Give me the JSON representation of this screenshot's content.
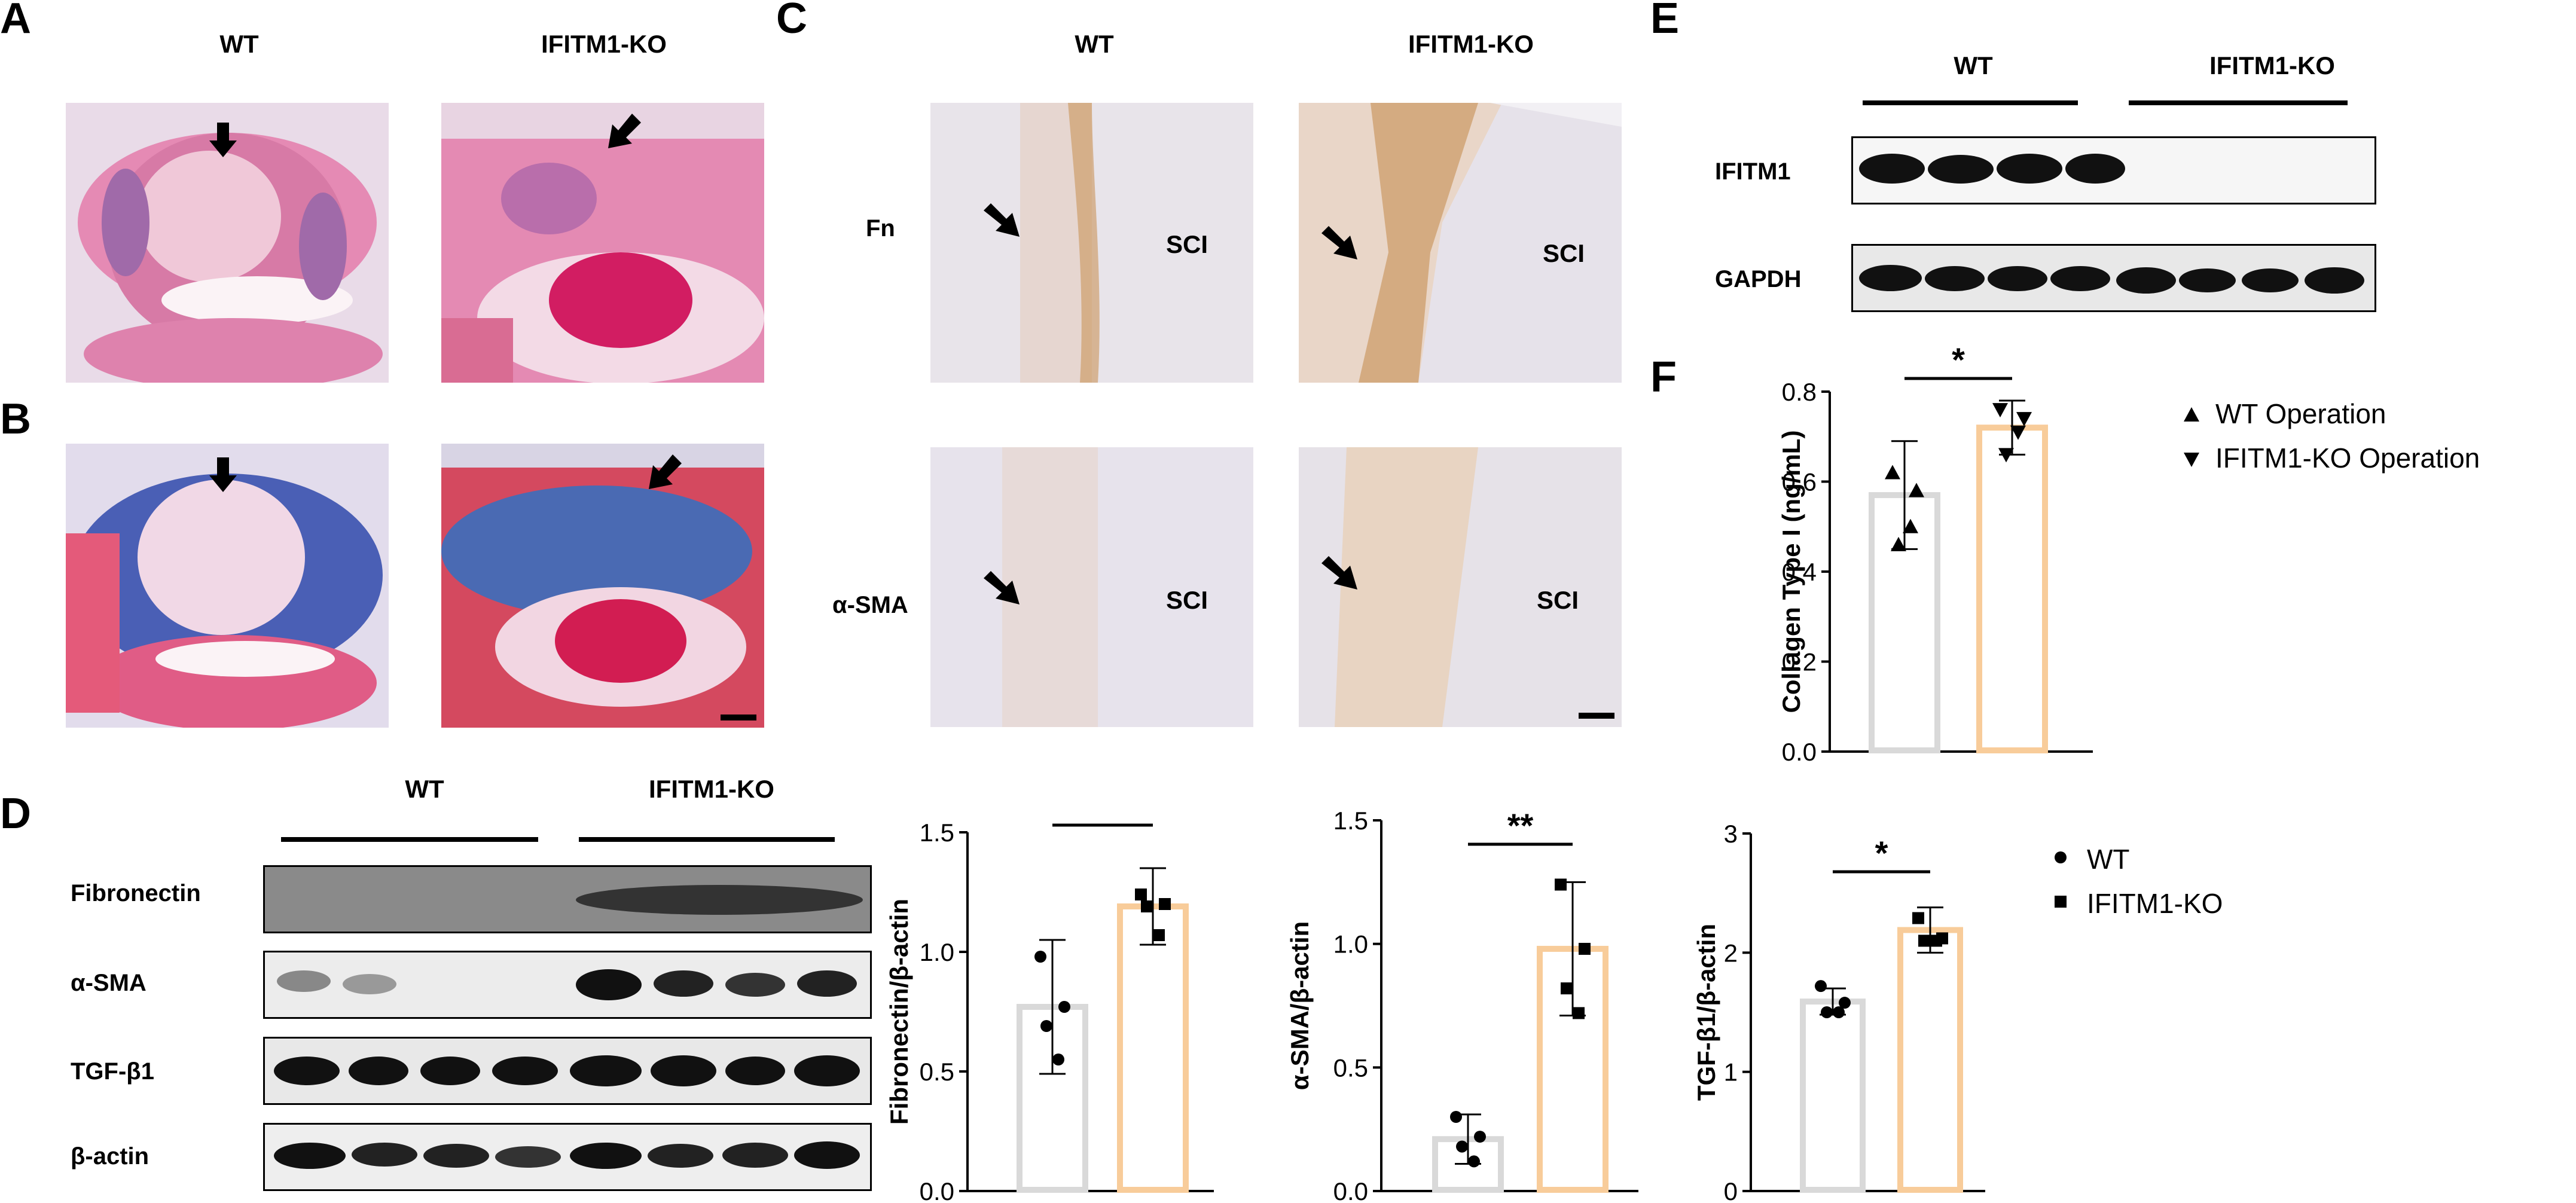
{
  "panels": {
    "A": {
      "letter": "A",
      "labels": [
        "WT",
        "IFITM1-KO"
      ]
    },
    "B": {
      "letter": "B"
    },
    "C": {
      "letter": "C",
      "labels": [
        "WT",
        "IFITM1-KO"
      ],
      "rows": [
        "Fn",
        "α-SMA"
      ],
      "region": "SCI"
    },
    "D": {
      "letter": "D",
      "labels": [
        "WT",
        "IFITM1-KO"
      ],
      "rows": [
        "Fibronectin",
        "α-SMA",
        "TGF-β1",
        "β-actin"
      ]
    },
    "E": {
      "letter": "E",
      "labels": [
        "WT",
        "IFITM1-KO"
      ],
      "rows": [
        "IFITM1",
        "GAPDH"
      ]
    },
    "F": {
      "letter": "F"
    }
  },
  "colors": {
    "wt_bar": "#d9d9d9",
    "ko_bar": "#f8cc9a",
    "he_pink": "#e58ab4",
    "masson_blue": "#4a5fb5",
    "ihc_bg": "#e8e4ea",
    "ihc_brown": "#c9945a"
  },
  "chart_data": [
    {
      "id": "F",
      "type": "bar",
      "categories": [
        "WT Operation",
        "IFITM1-KO Operation"
      ],
      "values": [
        0.57,
        0.72
      ],
      "errors": [
        0.12,
        0.06
      ],
      "points": [
        [
          0.62,
          0.58,
          0.46,
          0.5
        ],
        [
          0.76,
          0.74,
          0.66,
          0.71
        ]
      ],
      "ylabel": "Collagen Type I  (ng/mL)",
      "ylim": [
        0.0,
        0.8
      ],
      "yticks": [
        "0.0",
        "0.2",
        "0.4",
        "0.6",
        "0.8"
      ],
      "significance": "*",
      "legend": [
        "WT Operation",
        "IFITM1-KO Operation"
      ]
    },
    {
      "id": "D-fibronectin",
      "type": "bar",
      "categories": [
        "WT",
        "IFITM1-KO"
      ],
      "values": [
        0.77,
        1.19
      ],
      "errors": [
        0.28,
        0.16
      ],
      "points": [
        [
          0.98,
          0.77,
          0.69,
          0.55
        ],
        [
          1.24,
          1.2,
          1.19,
          1.07
        ]
      ],
      "ylabel": "Fibronectin/β-actin",
      "ylim": [
        0.0,
        1.5
      ],
      "yticks": [
        "0.0",
        "0.5",
        "1.0",
        "1.5"
      ],
      "significance": "*"
    },
    {
      "id": "D-asma",
      "type": "bar",
      "categories": [
        "WT",
        "IFITM1-KO"
      ],
      "values": [
        0.21,
        0.98
      ],
      "errors": [
        0.1,
        0.27
      ],
      "points": [
        [
          0.3,
          0.22,
          0.18,
          0.12
        ],
        [
          1.24,
          0.98,
          0.82,
          0.72
        ]
      ],
      "ylabel": "α-SMA/β-actin",
      "ylim": [
        0.0,
        1.5
      ],
      "yticks": [
        "0.0",
        "0.5",
        "1.0",
        "1.5"
      ],
      "significance": "**"
    },
    {
      "id": "D-tgfb1",
      "type": "bar",
      "categories": [
        "WT",
        "IFITM1-KO"
      ],
      "values": [
        1.59,
        2.19
      ],
      "errors": [
        0.11,
        0.19
      ],
      "points": [
        [
          1.72,
          1.58,
          1.5,
          1.5
        ],
        [
          2.29,
          2.12,
          2.1,
          2.1
        ]
      ],
      "ylabel": "TGF-β1/β-actin",
      "ylim": [
        0,
        3
      ],
      "yticks": [
        "0",
        "1",
        "2",
        "3"
      ],
      "significance": "*",
      "legend": [
        "WT",
        "IFITM1-KO"
      ]
    }
  ]
}
